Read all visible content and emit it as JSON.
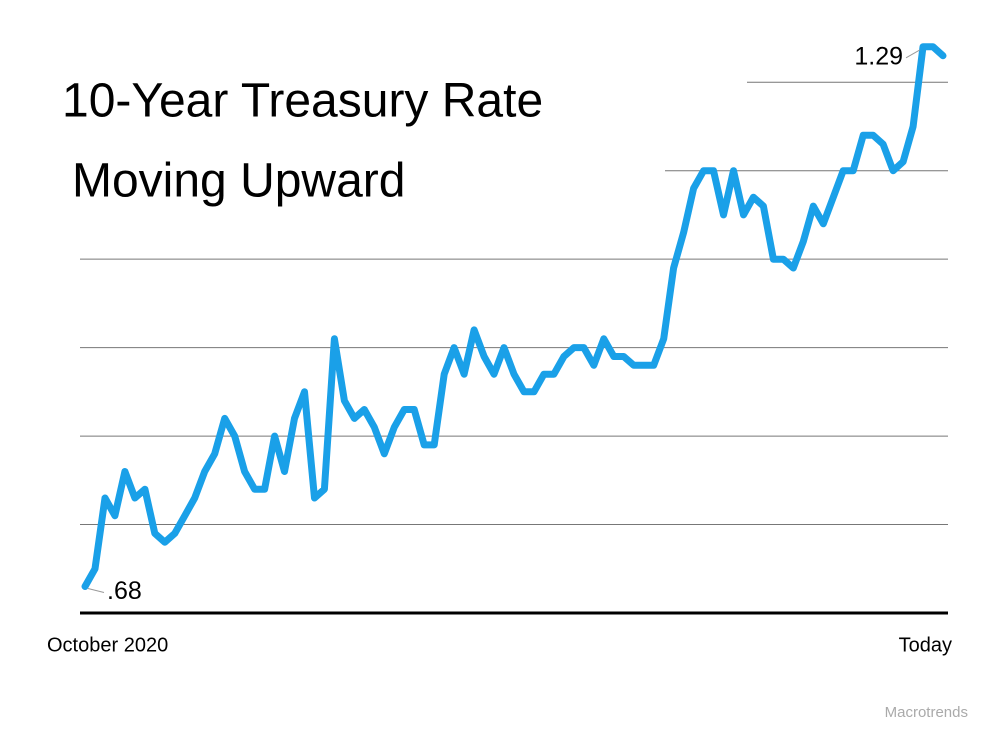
{
  "chart_data": {
    "type": "line",
    "title": [
      "10-Year Treasury Rate",
      "Moving Upward"
    ],
    "source": "Macrotrends",
    "categories": [
      "October 2020",
      null,
      null,
      null,
      null,
      null,
      null,
      null,
      null,
      null,
      null,
      null,
      null,
      null,
      null,
      null,
      null,
      null,
      null,
      null,
      null,
      null,
      null,
      null,
      null,
      null,
      null,
      null,
      null,
      null,
      null,
      null,
      null,
      null,
      null,
      null,
      null,
      null,
      null,
      null,
      null,
      null,
      null,
      null,
      null,
      null,
      null,
      null,
      null,
      null,
      null,
      null,
      null,
      null,
      null,
      null,
      null,
      null,
      null,
      null,
      null,
      null,
      null,
      null,
      null,
      null,
      null,
      null,
      null,
      null,
      null,
      null,
      null,
      null,
      null,
      null,
      null,
      null,
      null,
      null,
      null,
      null,
      null,
      null,
      null,
      null,
      "Today"
    ],
    "series": [
      {
        "color": "#1aa0e8",
        "values": [
          0.68,
          0.7,
          0.78,
          0.76,
          0.81,
          0.78,
          0.79,
          0.74,
          0.73,
          0.74,
          0.76,
          0.78,
          0.81,
          0.83,
          0.87,
          0.85,
          0.81,
          0.79,
          0.79,
          0.85,
          0.81,
          0.87,
          0.9,
          0.78,
          0.79,
          0.96,
          0.89,
          0.87,
          0.88,
          0.86,
          0.83,
          0.86,
          0.88,
          0.88,
          0.84,
          0.84,
          0.92,
          0.95,
          0.92,
          0.97,
          0.94,
          0.92,
          0.95,
          0.92,
          0.9,
          0.9,
          0.92,
          0.92,
          0.94,
          0.95,
          0.95,
          0.93,
          0.96,
          0.94,
          0.94,
          0.93,
          0.93,
          0.93,
          0.96,
          1.04,
          1.08,
          1.13,
          1.15,
          1.15,
          1.1,
          1.15,
          1.1,
          1.12,
          1.11,
          1.05,
          1.05,
          1.04,
          1.07,
          1.11,
          1.09,
          1.12,
          1.15,
          1.15,
          1.19,
          1.19,
          1.18,
          1.15,
          1.16,
          1.2,
          1.29,
          1.29,
          1.28
        ],
        "value_labels": [
          ".68",
          null,
          null,
          null,
          null,
          null,
          null,
          null,
          null,
          null,
          null,
          null,
          null,
          null,
          null,
          null,
          null,
          null,
          null,
          null,
          null,
          null,
          null,
          null,
          null,
          null,
          null,
          null,
          null,
          null,
          null,
          null,
          null,
          null,
          null,
          null,
          null,
          null,
          null,
          null,
          null,
          null,
          null,
          null,
          null,
          null,
          null,
          null,
          null,
          null,
          null,
          null,
          null,
          null,
          null,
          null,
          null,
          null,
          null,
          null,
          null,
          null,
          null,
          null,
          null,
          null,
          null,
          null,
          null,
          null,
          null,
          null,
          null,
          null,
          null,
          null,
          null,
          null,
          null,
          null,
          null,
          null,
          null,
          null,
          "1.29",
          null,
          null
        ]
      }
    ],
    "ylim": [
      0.65,
      1.3
    ],
    "yticks": [
      0.75,
      0.85,
      0.95,
      1.05,
      1.15,
      1.25
    ],
    "grid": true
  }
}
